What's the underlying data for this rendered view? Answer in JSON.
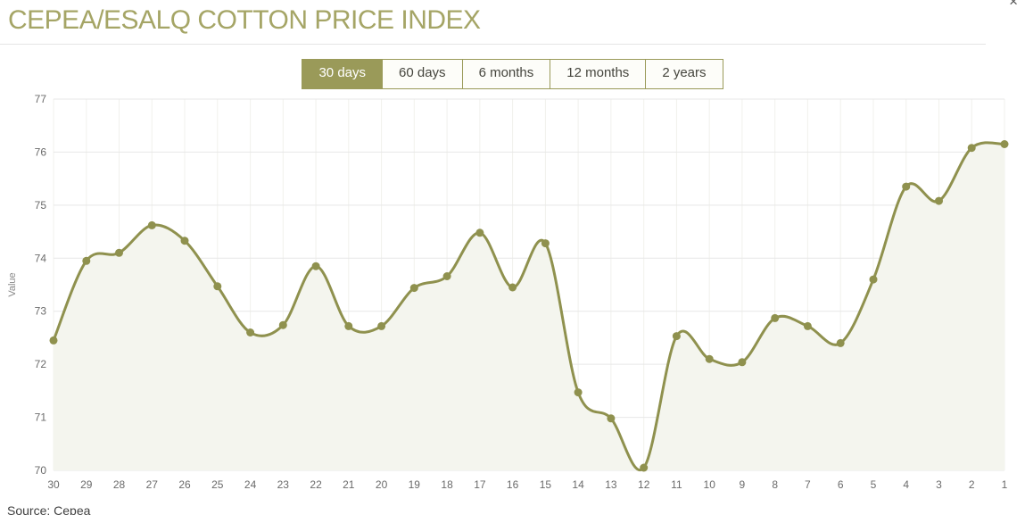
{
  "header": {
    "title": "CEPEA/ESALQ COTTON PRICE INDEX",
    "close_icon": "×"
  },
  "period_buttons": [
    {
      "label": "30 days",
      "active": true
    },
    {
      "label": "60 days",
      "active": false
    },
    {
      "label": "6 months",
      "active": false
    },
    {
      "label": "12 months",
      "active": false
    },
    {
      "label": "2 years",
      "active": false
    }
  ],
  "footer": {
    "source": "Source: Cepea"
  },
  "colors": {
    "accent": "#9a9a59",
    "line": "#8f914e",
    "marker": "#8f914e",
    "area_fill": "#f4f5ee",
    "title_text": "#a5a566",
    "grid_horizontal": "#e7e7e7",
    "grid_vertical": "#f1f1ec",
    "axis_text": "#6b6b6b",
    "axis_title_text": "#888888"
  },
  "chart_data": {
    "type": "area",
    "title": "CEPEA/ESALQ COTTON PRICE INDEX",
    "xlabel": "",
    "ylabel": "Value",
    "ylim": [
      70,
      77
    ],
    "yticks": [
      70,
      71,
      72,
      73,
      74,
      75,
      76,
      77
    ],
    "grid": true,
    "legend": false,
    "categories": [
      "30",
      "29",
      "28",
      "27",
      "26",
      "25",
      "24",
      "23",
      "22",
      "21",
      "20",
      "19",
      "18",
      "17",
      "16",
      "15",
      "14",
      "13",
      "12",
      "11",
      "10",
      "9",
      "8",
      "7",
      "6",
      "5",
      "4",
      "3",
      "2",
      "1"
    ],
    "values": [
      72.45,
      73.95,
      74.1,
      74.62,
      74.33,
      73.47,
      72.6,
      72.74,
      73.85,
      72.72,
      72.72,
      73.44,
      73.66,
      74.48,
      73.45,
      74.28,
      71.47,
      70.98,
      70.05,
      72.53,
      72.1,
      72.04,
      72.87,
      72.72,
      72.4,
      73.6,
      75.35,
      75.08,
      76.08,
      76.15
    ]
  }
}
